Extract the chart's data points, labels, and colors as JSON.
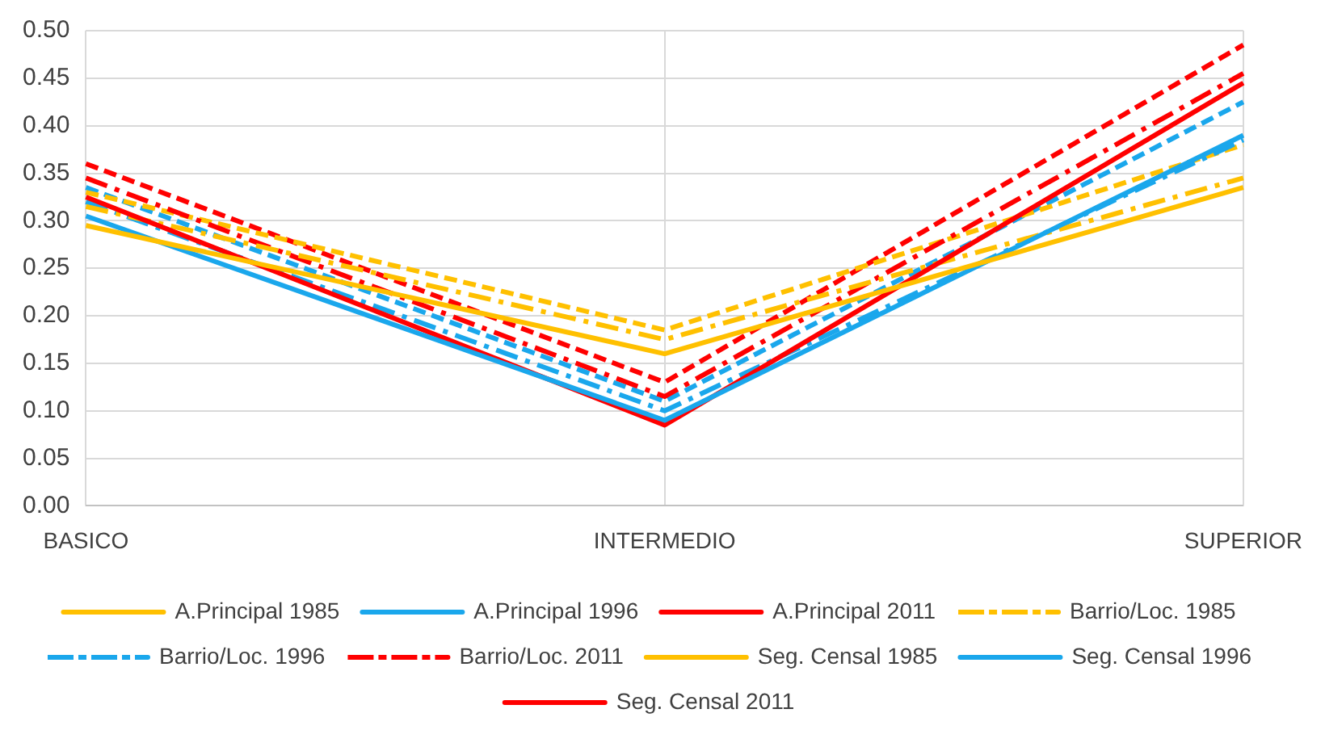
{
  "chart_data": {
    "type": "line",
    "categories": [
      "BASICO",
      "INTERMEDIO",
      "SUPERIOR"
    ],
    "ylim": [
      0,
      0.5
    ],
    "yticks": [
      {
        "value": 0,
        "label": "0.00"
      },
      {
        "value": 0.05,
        "label": "0.05"
      },
      {
        "value": 0.1,
        "label": "0.10"
      },
      {
        "value": 0.15,
        "label": "0.15"
      },
      {
        "value": 0.2,
        "label": "0.20"
      },
      {
        "value": 0.25,
        "label": "0.25"
      },
      {
        "value": 0.3,
        "label": "0.30"
      },
      {
        "value": 0.35,
        "label": "0.35"
      },
      {
        "value": 0.4,
        "label": "0.40"
      },
      {
        "value": 0.45,
        "label": "0.45"
      },
      {
        "value": 0.5,
        "label": "0.50"
      }
    ],
    "grid": true,
    "legend": "bottom",
    "marker": "none",
    "series": [
      {
        "name": "A.Principal 1985",
        "color": "#ffc000",
        "line_style": "solid",
        "values": [
          0.295,
          0.16,
          0.335
        ]
      },
      {
        "name": "A.Principal 1996",
        "color": "#1aa7ec",
        "line_style": "solid",
        "values": [
          0.305,
          0.09,
          0.39
        ]
      },
      {
        "name": "A.Principal 2011",
        "color": "#ff0000",
        "line_style": "solid",
        "values": [
          0.325,
          0.085,
          0.445
        ]
      },
      {
        "name": "Barrio/Loc. 1985",
        "color": "#ffc000",
        "line_style": "dashdot",
        "values": [
          0.315,
          0.175,
          0.345
        ]
      },
      {
        "name": "Barrio/Loc. 1996",
        "color": "#1aa7ec",
        "line_style": "dashdot",
        "values": [
          0.32,
          0.1,
          0.385
        ]
      },
      {
        "name": "Barrio/Loc. 2011",
        "color": "#ff0000",
        "line_style": "dashdot",
        "values": [
          0.345,
          0.115,
          0.455
        ]
      },
      {
        "name": "Seg. Censal 1985",
        "color": "#ffc000",
        "line_style": "dashed",
        "values": [
          0.33,
          0.185,
          0.38
        ]
      },
      {
        "name": "Seg. Censal 1996",
        "color": "#1aa7ec",
        "line_style": "dashed",
        "values": [
          0.335,
          0.11,
          0.425
        ]
      },
      {
        "name": "Seg. Censal 2011",
        "color": "#ff0000",
        "line_style": "dashed",
        "values": [
          0.36,
          0.13,
          0.485
        ]
      }
    ]
  }
}
